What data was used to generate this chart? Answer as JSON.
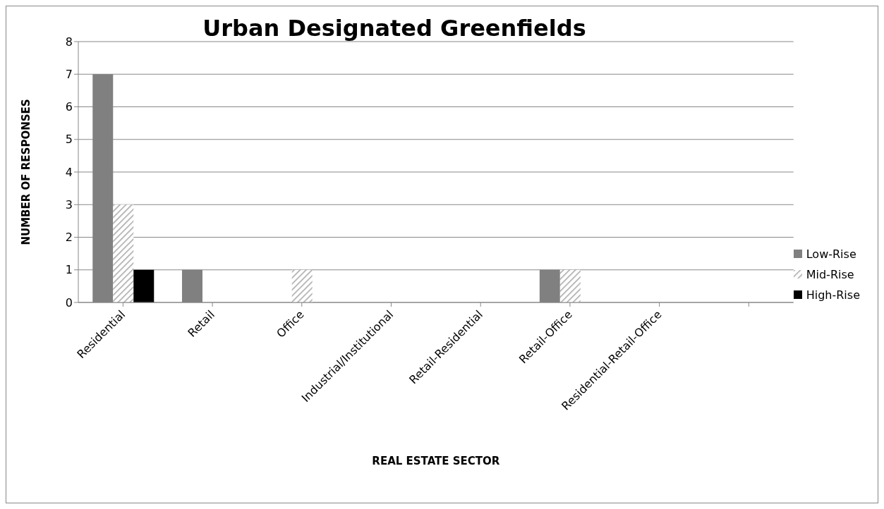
{
  "chart_data": {
    "type": "bar",
    "title": "Urban Designated Greenfields",
    "xlabel": "REAL ESTATE SECTOR",
    "ylabel": "NUMBER OF RESPONSES",
    "categories": [
      "Residential",
      "Retail",
      "Office",
      "Industrial/Institutional",
      "Retail-Residential",
      "Retail-Office",
      "Residential-Retail-Office",
      null
    ],
    "series": [
      {
        "name": "Low-Rise",
        "color": "#808080",
        "values": [
          7,
          1,
          0,
          0,
          0,
          1,
          0,
          0
        ]
      },
      {
        "name": "Mid-Rise",
        "color": "#a6a6a6",
        "values": [
          3,
          0,
          1,
          0,
          0,
          1,
          0,
          0
        ]
      },
      {
        "name": "High-Rise",
        "color": "#000000",
        "values": [
          1,
          0,
          0,
          0,
          0,
          0,
          0,
          0
        ]
      }
    ],
    "ylim": [
      0,
      8
    ],
    "yticks": [
      0,
      1,
      2,
      3,
      4,
      5,
      6,
      7,
      8
    ],
    "grid": "y",
    "legend": "right"
  }
}
